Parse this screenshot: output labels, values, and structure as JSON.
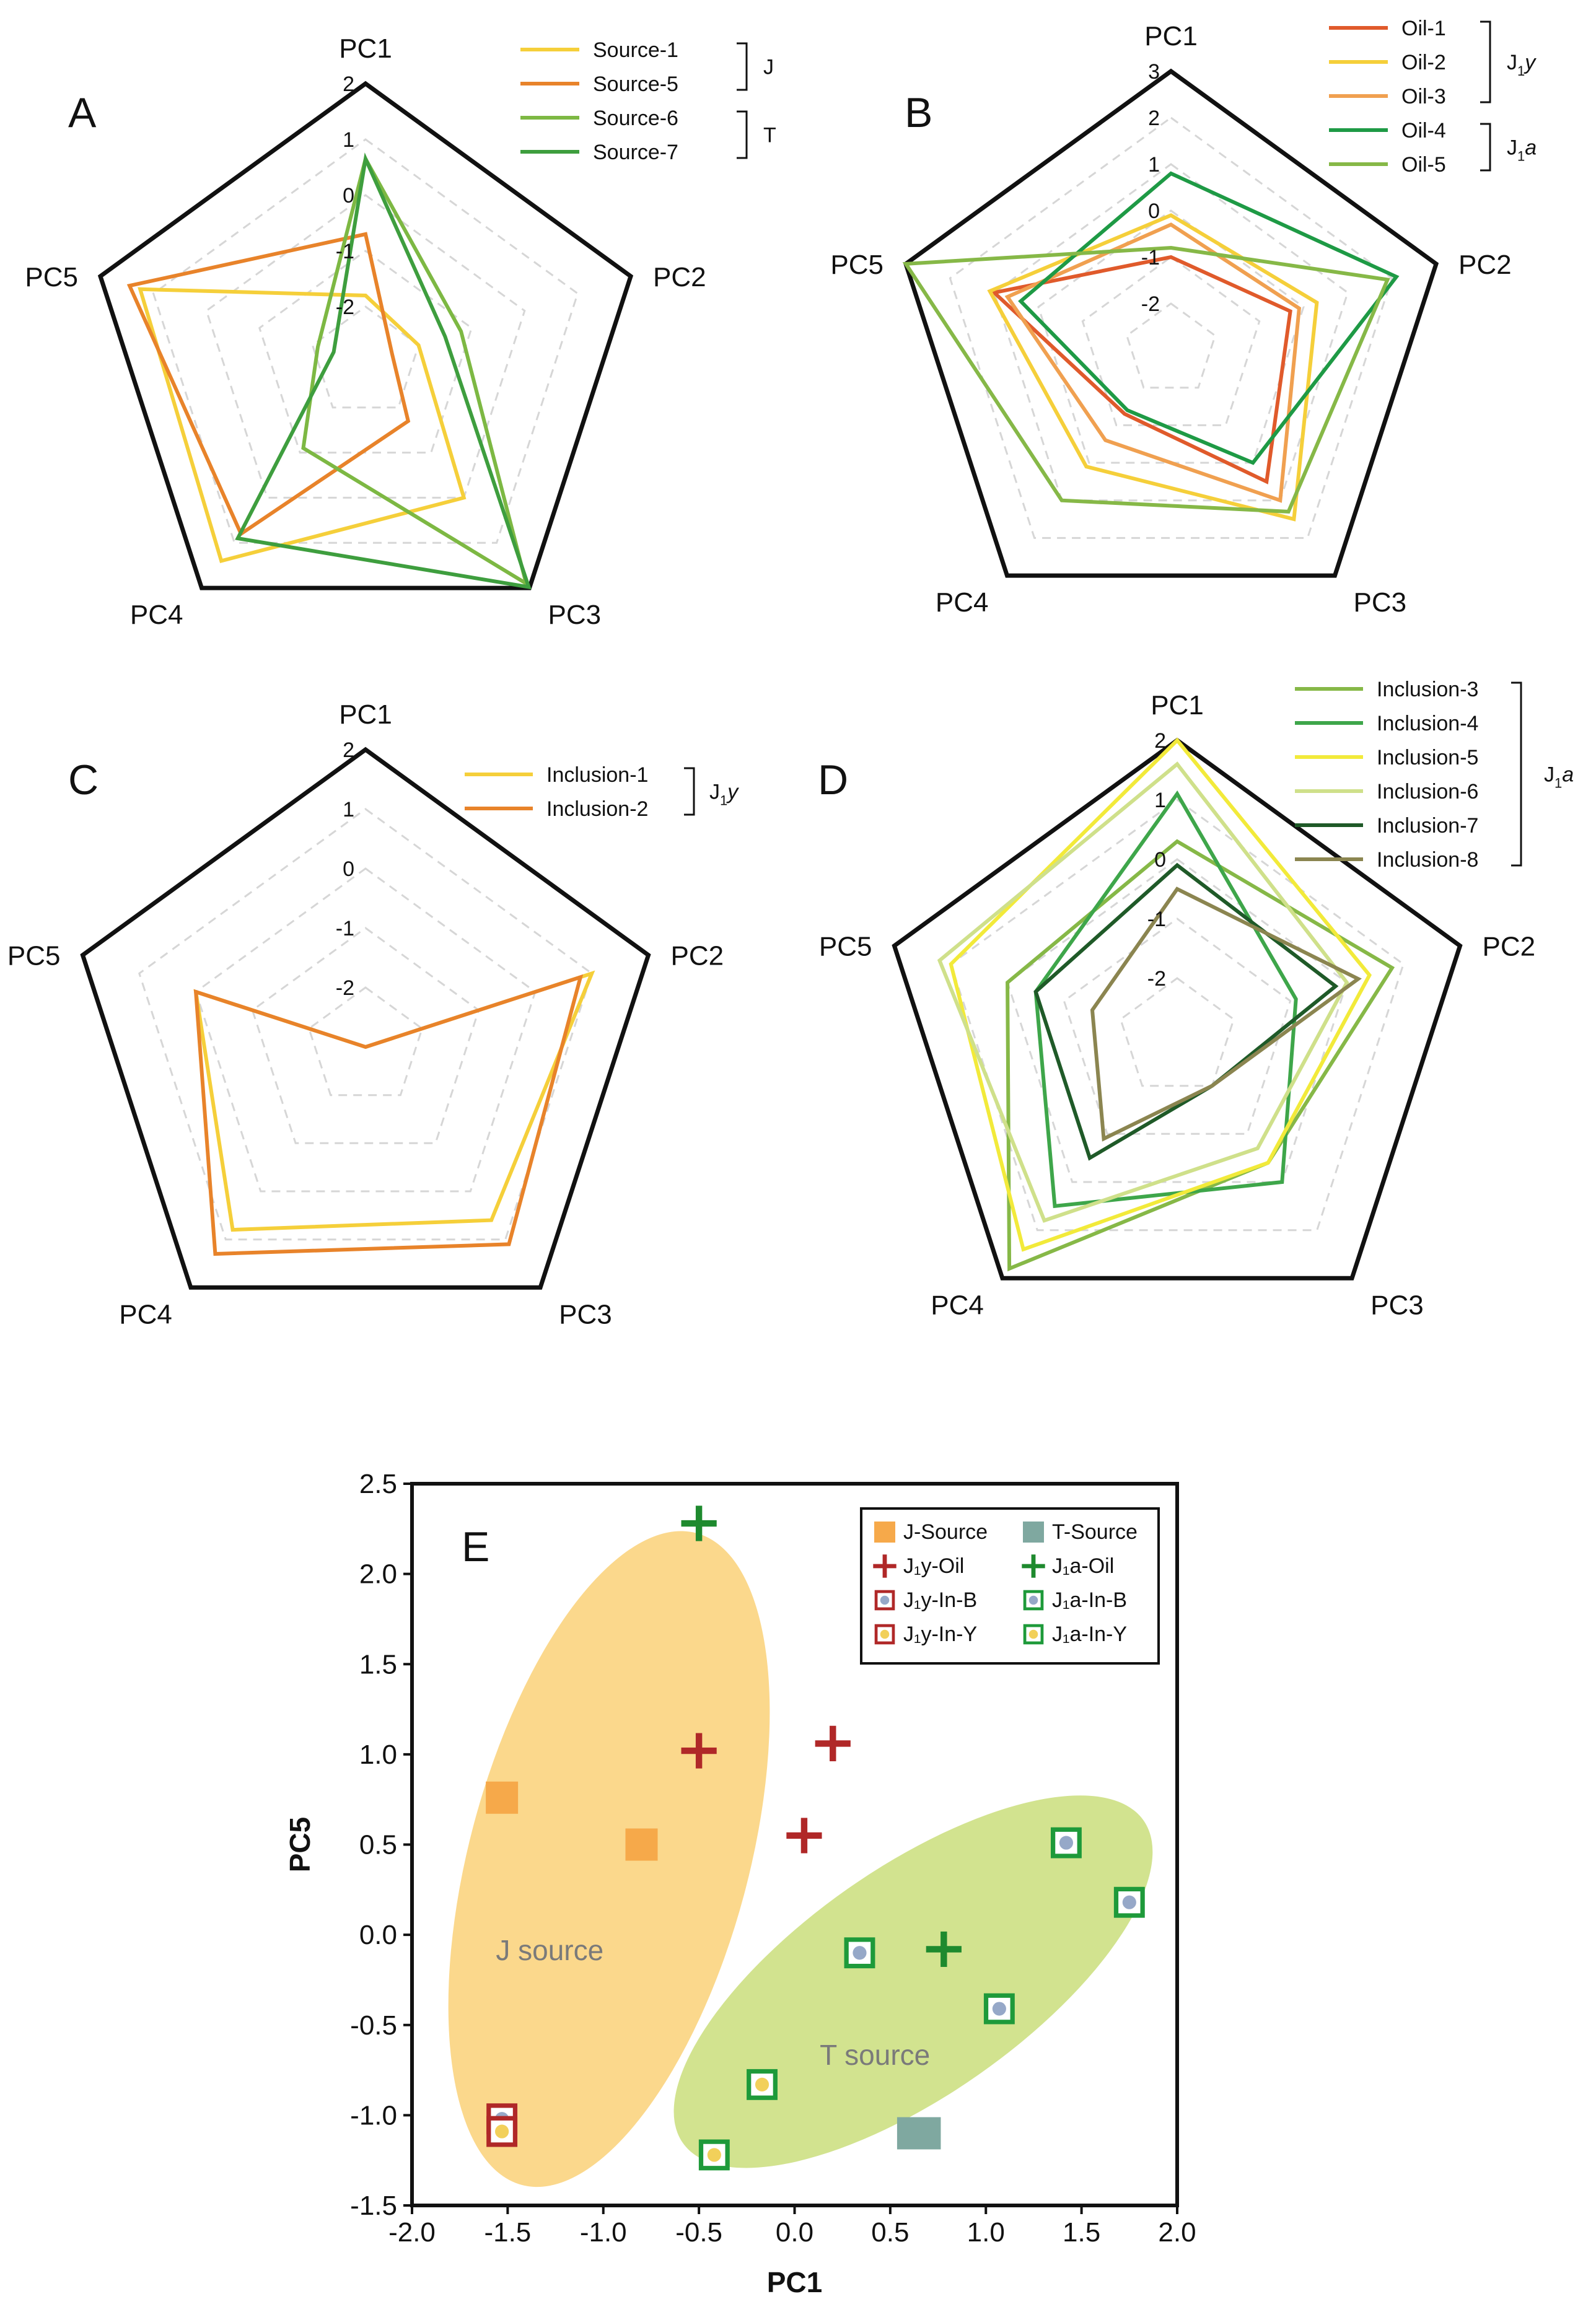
{
  "chart_data": [
    {
      "panel": "A",
      "type": "radar",
      "axes": [
        "PC1",
        "PC2",
        "PC3",
        "PC4",
        "PC5"
      ],
      "range": [
        -3,
        2
      ],
      "tick_values": [
        2,
        1,
        0,
        -1,
        -2
      ],
      "tick_labels": [
        "2",
        "1",
        "0",
        "-1",
        "-2"
      ],
      "series": [
        {
          "name": "Source-1",
          "color": "#F5CF3A",
          "values": [
            -1.8,
            -2.0,
            0.0,
            1.4,
            1.25
          ]
        },
        {
          "name": "Source-5",
          "color": "#E8832A",
          "values": [
            -0.7,
            -2.5,
            -1.7,
            0.8,
            1.45
          ]
        },
        {
          "name": "Source-6",
          "color": "#7DB843",
          "values": [
            0.65,
            -1.2,
            1.9,
            -1.1,
            -2.1
          ]
        },
        {
          "name": "Source-7",
          "color": "#3E9E3E",
          "values": [
            0.65,
            -1.5,
            1.98,
            0.9,
            -2.4
          ]
        }
      ],
      "groups": [
        {
          "label": "J",
          "members": [
            "Source-1",
            "Source-5"
          ]
        },
        {
          "label": "T",
          "members": [
            "Source-6",
            "Source-7"
          ]
        }
      ]
    },
    {
      "panel": "B",
      "type": "radar",
      "axes": [
        "PC1",
        "PC2",
        "PC3",
        "PC4",
        "PC5"
      ],
      "range": [
        -3,
        3
      ],
      "tick_values": [
        3,
        2,
        1,
        0,
        -1,
        -2
      ],
      "tick_labels": [
        "3",
        "2",
        "1",
        "0",
        "-1",
        "-2"
      ],
      "series": [
        {
          "name": "Oil-1",
          "color": "#E05A2B",
          "values": [
            -1.0,
            -0.3,
            0.5,
            -1.3,
            1.0
          ]
        },
        {
          "name": "Oil-2",
          "color": "#F5CF3A",
          "values": [
            -0.1,
            0.3,
            1.5,
            0.1,
            1.1
          ]
        },
        {
          "name": "Oil-3",
          "color": "#F0A050",
          "values": [
            -0.3,
            -0.1,
            1.0,
            -0.6,
            0.7
          ]
        },
        {
          "name": "Oil-4",
          "color": "#1E9A45",
          "values": [
            0.8,
            2.1,
            0.0,
            -1.4,
            0.4
          ]
        },
        {
          "name": "Oil-5",
          "color": "#86B847",
          "values": [
            -0.8,
            1.9,
            1.3,
            1.0,
            3.0
          ]
        }
      ],
      "groups": [
        {
          "label": "J1y",
          "members": [
            "Oil-1",
            "Oil-2",
            "Oil-3"
          ]
        },
        {
          "label": "J1a",
          "members": [
            "Oil-4",
            "Oil-5"
          ]
        }
      ],
      "group_labels": [
        {
          "main": "J",
          "sub": "1",
          "tail": "y"
        },
        {
          "main": "J",
          "sub": "1",
          "tail": "a"
        }
      ]
    },
    {
      "panel": "C",
      "type": "radar",
      "axes": [
        "PC1",
        "PC2",
        "PC3",
        "PC4",
        "PC5"
      ],
      "range": [
        -3,
        2
      ],
      "tick_values": [
        2,
        1,
        0,
        -1,
        -2
      ],
      "tick_labels": [
        "2",
        "1",
        "0",
        "-1",
        "-2"
      ],
      "series": [
        {
          "name": "Inclusion-1",
          "color": "#F5CF3A",
          "values": [
            -3.0,
            1.0,
            0.6,
            0.8,
            0.0
          ]
        },
        {
          "name": "Inclusion-2",
          "color": "#E8832A",
          "values": [
            -3.0,
            0.8,
            1.1,
            1.3,
            0.0
          ]
        }
      ],
      "groups": [
        {
          "label": "J1y",
          "members": [
            "Inclusion-1",
            "Inclusion-2"
          ]
        }
      ],
      "group_labels": [
        {
          "main": "J",
          "sub": "1",
          "tail": "y"
        }
      ]
    },
    {
      "panel": "D",
      "type": "radar",
      "axes": [
        "PC1",
        "PC2",
        "PC3",
        "PC4",
        "PC5"
      ],
      "range": [
        -3,
        2
      ],
      "tick_values": [
        2,
        1,
        0,
        -1,
        -2
      ],
      "tick_labels": [
        "2",
        "1",
        "0",
        "-1",
        "-2"
      ],
      "series": [
        {
          "name": "Inclusion-3",
          "color": "#86B847",
          "values": [
            0.3,
            0.8,
            -0.4,
            1.8,
            0.0
          ]
        },
        {
          "name": "Inclusion-4",
          "color": "#3EA64A",
          "values": [
            1.1,
            -0.9,
            0.0,
            0.5,
            -0.5
          ]
        },
        {
          "name": "Inclusion-5",
          "color": "#F2EA3A",
          "values": [
            2.0,
            0.4,
            -0.4,
            1.4,
            1.0
          ]
        },
        {
          "name": "Inclusion-6",
          "color": "#CFE08A",
          "values": [
            1.6,
            0.0,
            -0.7,
            0.8,
            1.2
          ]
        },
        {
          "name": "Inclusion-7",
          "color": "#1F5A28",
          "values": [
            -0.1,
            -0.2,
            -2.0,
            -0.5,
            -0.5
          ]
        },
        {
          "name": "Inclusion-8",
          "color": "#8B8550",
          "values": [
            -0.5,
            0.2,
            -2.0,
            -0.9,
            -1.5
          ]
        }
      ],
      "groups": [
        {
          "label": "J1a",
          "members": [
            "Inclusion-3",
            "Inclusion-4",
            "Inclusion-5",
            "Inclusion-6",
            "Inclusion-7",
            "Inclusion-8"
          ]
        }
      ],
      "group_labels": [
        {
          "main": "J",
          "sub": "1",
          "tail": "a"
        }
      ]
    },
    {
      "panel": "E",
      "type": "scatter",
      "xlabel": "PC1",
      "ylabel": "PC5",
      "xlim": [
        -2.0,
        2.0
      ],
      "ylim": [
        -1.5,
        2.5
      ],
      "x_ticks": [
        -2.0,
        -1.5,
        -1.0,
        -0.5,
        0.0,
        0.5,
        1.0,
        1.5,
        2.0
      ],
      "x_tick_labels": [
        "-2.0",
        "-1.5",
        "-1.0",
        "-0.5",
        "0.0",
        "0.5",
        "1.0",
        "1.5",
        "2.0"
      ],
      "y_ticks": [
        2.5,
        2.0,
        1.5,
        1.0,
        0.5,
        0.0,
        -0.5,
        -1.0,
        -1.5
      ],
      "y_tick_labels": [
        "2.5",
        "2.0",
        "1.5",
        "1.0",
        "0.5",
        "0.0",
        "-0.5",
        "-1.0",
        "-1.5"
      ],
      "legend": [
        {
          "label": "J-Source",
          "marker": "square",
          "fill": "#F6A94A"
        },
        {
          "label": "T-Source",
          "marker": "square",
          "fill": "#7FA8A0"
        },
        {
          "label": "J₁y-Oil",
          "marker": "plus",
          "stroke": "#B02828"
        },
        {
          "label": "J₁a-Oil",
          "marker": "plus",
          "stroke": "#1E8A2E"
        },
        {
          "label": "J₁y-In-B",
          "marker": "framed",
          "edge": "#B02828",
          "fill": "#96A8C8"
        },
        {
          "label": "J₁a-In-B",
          "marker": "framed",
          "edge": "#1E9A3A",
          "fill": "#96A8C8"
        },
        {
          "label": "J₁y-In-Y",
          "marker": "framed",
          "edge": "#B02828",
          "fill": "#F2D05A"
        },
        {
          "label": "J₁a-In-Y",
          "marker": "framed",
          "edge": "#1E9A3A",
          "fill": "#F2D05A"
        }
      ],
      "series": [
        {
          "name": "J-Source",
          "points": [
            [
              -1.53,
              0.76
            ],
            [
              -0.8,
              0.5
            ]
          ]
        },
        {
          "name": "T-Source",
          "points": [
            [
              0.62,
              -1.1
            ],
            [
              0.68,
              -1.1
            ]
          ]
        },
        {
          "name": "J₁y-Oil",
          "points": [
            [
              -0.5,
              1.02
            ],
            [
              0.2,
              1.06
            ],
            [
              0.05,
              0.55
            ]
          ]
        },
        {
          "name": "J₁a-Oil",
          "points": [
            [
              -0.5,
              2.28
            ],
            [
              0.78,
              -0.08
            ]
          ]
        },
        {
          "name": "J₁y-In-B",
          "points": [
            [
              -1.53,
              -1.02
            ]
          ]
        },
        {
          "name": "J₁a-In-B",
          "points": [
            [
              1.42,
              0.51
            ],
            [
              1.75,
              0.18
            ],
            [
              0.34,
              -0.1
            ],
            [
              1.07,
              -0.41
            ]
          ]
        },
        {
          "name": "J₁y-In-Y",
          "points": [
            [
              -1.53,
              -1.09
            ]
          ]
        },
        {
          "name": "J₁a-In-Y",
          "points": [
            [
              -0.17,
              -0.83
            ],
            [
              -0.42,
              -1.22
            ]
          ]
        }
      ],
      "regions": [
        {
          "label": "J source",
          "color": "#FBD88C",
          "center": [
            -0.97,
            0.42
          ],
          "semi_axes": [
            0.73,
            1.87
          ],
          "rotation_deg": 15
        },
        {
          "label": "T source",
          "color": "#D2E38F",
          "center": [
            0.62,
            -0.26
          ],
          "semi_axes": [
            1.47,
            0.63
          ],
          "rotation_deg": -35
        }
      ]
    }
  ]
}
